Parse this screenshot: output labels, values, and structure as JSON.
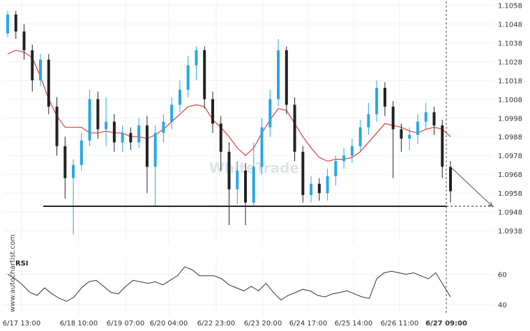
{
  "watermark": "WhiteTrade",
  "vertical_watermark": "www.autochartist.com",
  "chart_data": {
    "type": "candlestick",
    "title": "",
    "price_axis": {
      "ticks": [
        "1.1058",
        "1.1048",
        "1.1038",
        "1.1028",
        "1.1018",
        "1.1008",
        "1.0998",
        "1.0988",
        "1.0978",
        "1.0968",
        "1.0958",
        "1.0948",
        "1.0938"
      ],
      "ylim": [
        1.0931,
        1.106
      ]
    },
    "time_axis": {
      "ticks": [
        "6/17 13:00",
        "6/18 10:00",
        "6/19 07:00",
        "6/20 04:00",
        "6/22 23:00",
        "6/23 20:00",
        "6/24 17:00",
        "6/25 14:00",
        "6/26 11:00",
        "6/27 09:00"
      ],
      "highlighted_tick": "6/27 09:00"
    },
    "colors": {
      "bullish": "#29a7e1",
      "bearish": "#222222",
      "moving_average": "#e03c3c",
      "support_line": "#222222",
      "projection": "#555555",
      "rsi_line": "#333333"
    },
    "support_level": 1.0951,
    "projection": {
      "from_price": 1.0972,
      "to_price": 1.0951
    },
    "moving_average": [
      1.1032,
      1.1034,
      1.1033,
      1.103,
      1.102,
      1.1008,
      1.0999,
      1.0993,
      1.0993,
      1.0993,
      1.099,
      1.099,
      1.0991,
      1.099,
      1.099,
      1.0988,
      1.0988,
      1.0987,
      1.0989,
      1.0992,
      1.0996,
      1.1,
      1.1004,
      1.1005,
      1.1004,
      1.0997,
      1.0993,
      1.0988,
      1.0982,
      1.0978,
      1.0982,
      1.099,
      1.0997,
      1.1003,
      1.1002,
      1.0995,
      1.0988,
      1.0982,
      1.0977,
      1.0975,
      1.0976,
      1.0976,
      1.0977,
      1.098,
      1.0985,
      1.099,
      1.0995,
      1.0994,
      1.0993,
      1.0991,
      1.099,
      1.0992,
      1.0993,
      1.0992,
      1.0988
    ],
    "candles": [
      [
        1.1043,
        1.1053,
        1.1055,
        1.1041
      ],
      [
        1.1053,
        1.1044,
        1.1055,
        1.104
      ],
      [
        1.1044,
        1.1034,
        1.1048,
        1.1029
      ],
      [
        1.1034,
        1.1018,
        1.1037,
        1.1012
      ],
      [
        1.1018,
        1.1029,
        1.1032,
        1.1015
      ],
      [
        1.1029,
        1.1004,
        1.1032,
        1.1
      ],
      [
        1.1004,
        1.0983,
        1.1009,
        1.0978
      ],
      [
        1.0983,
        1.0966,
        1.0988,
        1.0955
      ],
      [
        1.0966,
        1.0973,
        1.0976,
        1.0936
      ],
      [
        1.0973,
        1.0986,
        1.099,
        1.097
      ],
      [
        1.0986,
        1.1008,
        1.1013,
        1.0983
      ],
      [
        1.1008,
        1.0992,
        1.1012,
        1.0987
      ],
      [
        1.0992,
        1.0996,
        1.1009,
        1.0983
      ],
      [
        1.0996,
        1.0985,
        1.1,
        1.098
      ],
      [
        1.0985,
        1.099,
        1.0994,
        1.098
      ],
      [
        1.099,
        1.0985,
        1.0993,
        1.0981
      ],
      [
        1.0985,
        1.0994,
        1.0998,
        1.0982
      ],
      [
        1.0994,
        1.0972,
        1.0999,
        1.0958
      ],
      [
        1.0972,
        1.099,
        1.0994,
        1.0951
      ],
      [
        1.099,
        1.0996,
        1.1,
        1.0985
      ],
      [
        1.0996,
        1.1005,
        1.1009,
        1.0992
      ],
      [
        1.1005,
        1.1013,
        1.1018,
        1.1001
      ],
      [
        1.1013,
        1.1026,
        1.1031,
        1.1009
      ],
      [
        1.1026,
        1.1034,
        1.1036,
        1.1018
      ],
      [
        1.1034,
        1.1008,
        1.1036,
        1.1003
      ],
      [
        1.1008,
        1.0995,
        1.1012,
        1.099
      ],
      [
        1.0995,
        1.098,
        1.0999,
        1.097
      ],
      [
        1.098,
        1.096,
        1.0985,
        1.0941
      ],
      [
        1.096,
        1.097,
        1.0975,
        1.0952
      ],
      [
        1.097,
        1.0953,
        1.0974,
        1.0941
      ],
      [
        1.0953,
        1.0972,
        1.0985,
        1.0951
      ],
      [
        1.0972,
        1.0993,
        1.0998,
        1.0968
      ],
      [
        1.0993,
        1.1008,
        1.1013,
        1.0988
      ],
      [
        1.1008,
        1.1034,
        1.104,
        1.1004
      ],
      [
        1.1034,
        1.1005,
        1.1036,
        1.1
      ],
      [
        1.1005,
        1.098,
        1.1009,
        1.0975
      ],
      [
        1.098,
        1.0957,
        1.0983,
        1.0953
      ],
      [
        1.0957,
        1.0963,
        1.0967,
        1.0953
      ],
      [
        1.0963,
        1.0958,
        1.0966,
        1.0954
      ],
      [
        1.0958,
        1.0967,
        1.0971,
        1.0954
      ],
      [
        1.0967,
        1.0975,
        1.0978,
        1.0962
      ],
      [
        1.0975,
        1.0978,
        1.0982,
        1.0971
      ],
      [
        1.0978,
        1.0983,
        1.0987,
        1.0974
      ],
      [
        1.0983,
        1.0993,
        1.0997,
        1.098
      ],
      [
        1.0993,
        1.1,
        1.1006,
        1.0989
      ],
      [
        1.1,
        1.1014,
        1.1018,
        1.0996
      ],
      [
        1.1014,
        1.1004,
        1.1017,
        1.0999
      ],
      [
        1.1004,
        1.0992,
        1.1007,
        1.0966
      ],
      [
        1.0992,
        1.0987,
        1.0995,
        1.098
      ],
      [
        1.0987,
        1.0989,
        1.0993,
        1.0981
      ],
      [
        1.0989,
        1.0996,
        1.1,
        1.0984
      ],
      [
        1.0996,
        1.1001,
        1.1006,
        1.0992
      ],
      [
        1.1001,
        1.0994,
        1.1004,
        1.0989
      ],
      [
        1.0994,
        1.0972,
        1.0997,
        1.0966
      ],
      [
        1.0972,
        1.0959,
        1.0975,
        1.0953
      ]
    ]
  },
  "rsi": {
    "title": "RSI",
    "ticks": [
      "60",
      "40"
    ],
    "ylim": [
      33,
      70
    ],
    "values": [
      60,
      57,
      53,
      48,
      46,
      51,
      47,
      44,
      42,
      45,
      51,
      55,
      56,
      52,
      48,
      47,
      52,
      56,
      55,
      54,
      55,
      53,
      56,
      59,
      65,
      63,
      59,
      59,
      59,
      57,
      53,
      51,
      49,
      52,
      49,
      54,
      48,
      43,
      46,
      48,
      50,
      49,
      46,
      45,
      47,
      48,
      49,
      47,
      45,
      44,
      57,
      61,
      62,
      61,
      60,
      61,
      59,
      57,
      61,
      53,
      45
    ]
  }
}
